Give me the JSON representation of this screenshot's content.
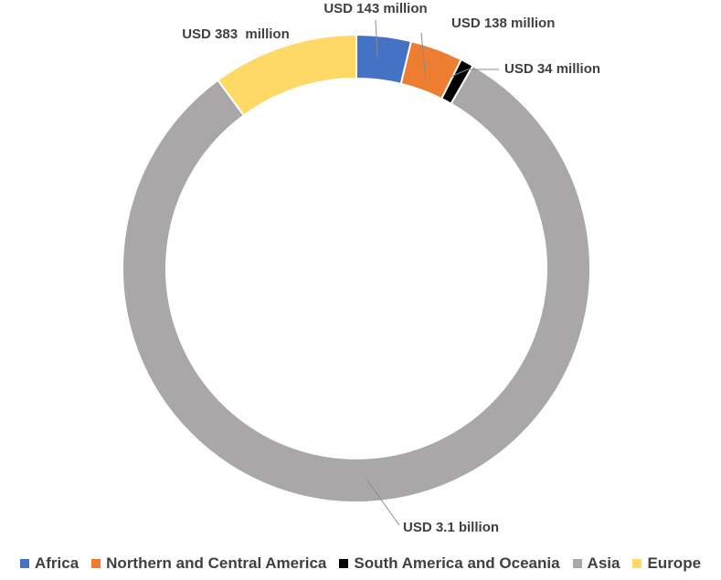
{
  "chart_data": {
    "type": "pie",
    "variant": "doughnut",
    "series": [
      {
        "name": "Africa",
        "value": 143000000,
        "label": "USD 143 million",
        "color": "#4472C4"
      },
      {
        "name": "Northern and Central America",
        "value": 138000000,
        "label": "USD 138 million",
        "color": "#ED7D31"
      },
      {
        "name": "South America and Oceania",
        "value": 34000000,
        "label": "USD 34 million",
        "color": "#000000"
      },
      {
        "name": "Asia",
        "value": 3100000000,
        "label": "USD 3.1 billion",
        "color": "#A9A7A7"
      },
      {
        "name": "Europe",
        "value": 383000000,
        "label": "USD 383  million",
        "color": "#FFD966"
      }
    ],
    "legend_position": "bottom"
  }
}
